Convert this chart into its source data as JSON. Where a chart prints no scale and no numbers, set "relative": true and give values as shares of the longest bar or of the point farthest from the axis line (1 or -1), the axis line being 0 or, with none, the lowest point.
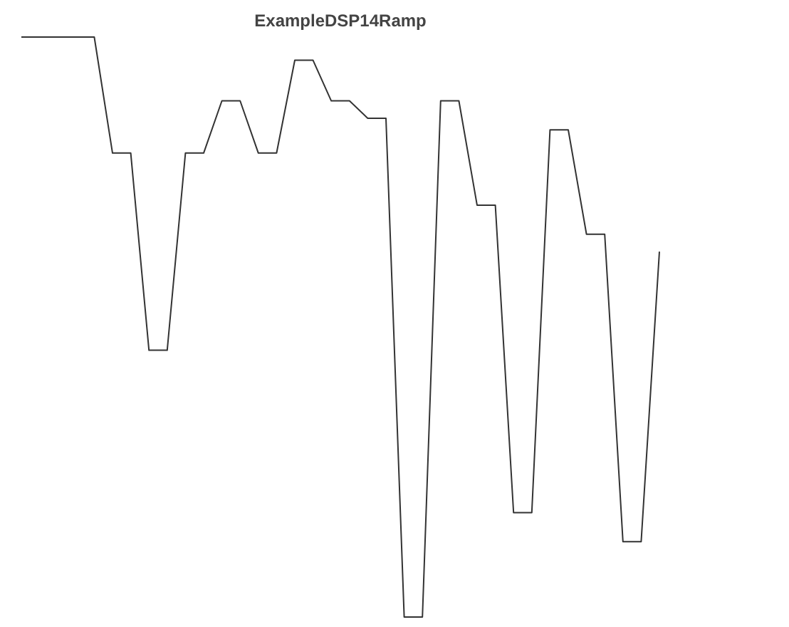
{
  "chart_data": {
    "type": "line",
    "title": "ExampleDSP14Ramp",
    "relative": true,
    "marker": "none",
    "line_style": "solid",
    "categories": [
      null,
      null,
      null,
      null,
      null,
      null,
      null,
      null,
      null,
      null,
      null,
      null,
      null,
      null,
      null,
      null,
      null,
      null,
      null,
      null,
      null,
      null,
      null,
      null,
      null,
      null,
      null,
      null,
      null,
      null,
      null,
      null,
      null,
      null,
      null,
      null
    ],
    "series": [
      {
        "color": "#333333",
        "values": [
          1.0,
          1.0,
          1.0,
          1.0,
          1.0,
          0.8,
          0.8,
          0.46,
          0.46,
          0.8,
          0.8,
          0.89,
          0.89,
          0.8,
          0.8,
          0.96,
          0.96,
          0.89,
          0.89,
          0.86,
          0.86,
          0.0,
          0.0,
          0.89,
          0.89,
          0.71,
          0.71,
          0.18,
          0.18,
          0.84,
          0.84,
          0.66,
          0.66,
          0.13,
          0.13,
          0.63
        ]
      }
    ]
  }
}
